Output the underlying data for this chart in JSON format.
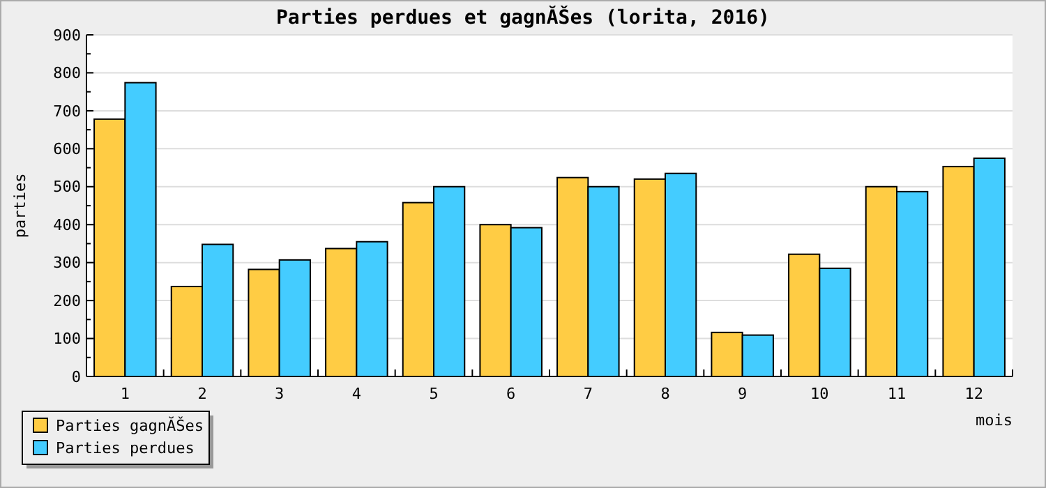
{
  "chart_data": {
    "type": "bar",
    "title": "Parties perdues et gagnĂŠes (lorita, 2016)",
    "xlabel": "mois",
    "ylabel": "parties",
    "categories": [
      "1",
      "2",
      "3",
      "4",
      "5",
      "6",
      "7",
      "8",
      "9",
      "10",
      "11",
      "12"
    ],
    "series": [
      {
        "name": "Parties gagnĂŠes",
        "color": "#ffcc44",
        "values": [
          678,
          237,
          282,
          337,
          458,
          400,
          524,
          520,
          116,
          322,
          500,
          553
        ]
      },
      {
        "name": "Parties perdues",
        "color": "#44ccff",
        "values": [
          774,
          348,
          307,
          355,
          500,
          392,
          500,
          535,
          109,
          285,
          487,
          575
        ]
      }
    ],
    "ylim": [
      0,
      900
    ],
    "yticks": [
      0,
      {
        "value": 50,
        "label": null
      },
      100,
      {
        "value": 150,
        "label": null
      },
      200,
      {
        "value": 250,
        "label": null
      },
      300,
      {
        "value": 350,
        "label": null
      },
      400,
      {
        "value": 450,
        "label": null
      },
      500,
      {
        "value": 550,
        "label": null
      },
      600,
      {
        "value": 650,
        "label": null
      },
      700,
      {
        "value": 750,
        "label": null
      },
      800,
      {
        "value": 850,
        "label": null
      },
      900
    ],
    "grid": "y",
    "legend": "bottom left"
  }
}
